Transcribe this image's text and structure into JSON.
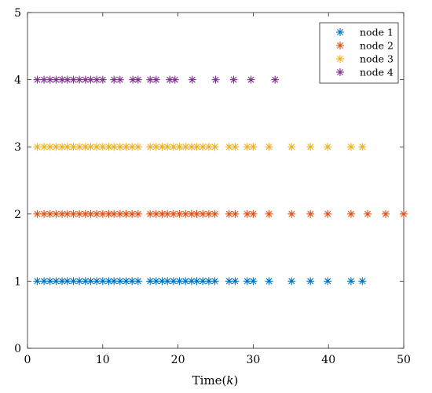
{
  "chart_data": {
    "type": "scatter",
    "marker": "asterisk",
    "xlabel": "Time(k)",
    "xlabel_parts": {
      "prefix": "Time(",
      "var": "k",
      "suffix": ")"
    },
    "ylabel": "",
    "xlim": [
      0,
      50
    ],
    "ylim": [
      0,
      5
    ],
    "xticks": [
      0,
      10,
      20,
      30,
      40,
      50
    ],
    "yticks": [
      0,
      1,
      2,
      3,
      4,
      5
    ],
    "grid": false,
    "legend_position": "top-right",
    "series": [
      {
        "name": "node 1",
        "color": "#0072BD",
        "y": 1,
        "x": [
          1.3,
          2.2,
          3.0,
          3.8,
          4.6,
          5.3,
          6.1,
          6.9,
          7.7,
          8.4,
          9.2,
          10.0,
          10.8,
          11.5,
          12.3,
          13.1,
          13.9,
          14.7,
          16.3,
          17.1,
          17.9,
          18.6,
          19.4,
          20.2,
          21.0,
          21.8,
          22.5,
          23.3,
          24.1,
          24.9,
          26.8,
          27.6,
          29.2,
          30.0,
          32.1,
          35.1,
          37.6,
          39.9,
          43.0,
          44.5
        ]
      },
      {
        "name": "node 2",
        "color": "#D95319",
        "y": 2,
        "x": [
          1.3,
          2.2,
          3.0,
          3.8,
          4.6,
          5.3,
          6.1,
          6.9,
          7.7,
          8.4,
          9.2,
          10.0,
          10.8,
          11.5,
          12.3,
          13.1,
          13.9,
          14.7,
          16.3,
          17.1,
          17.9,
          18.6,
          19.4,
          20.2,
          21.0,
          21.8,
          22.5,
          23.3,
          24.1,
          24.9,
          26.8,
          27.6,
          29.2,
          30.0,
          32.1,
          35.1,
          37.6,
          39.9,
          43.0,
          45.2,
          47.6,
          50.0
        ]
      },
      {
        "name": "node 3",
        "color": "#EDB120",
        "y": 3,
        "x": [
          1.3,
          2.2,
          3.0,
          3.8,
          4.6,
          5.3,
          6.1,
          6.9,
          7.7,
          8.4,
          9.2,
          10.0,
          10.8,
          11.5,
          12.3,
          13.1,
          13.9,
          14.7,
          16.3,
          17.1,
          17.9,
          18.6,
          19.4,
          20.2,
          21.0,
          21.8,
          22.5,
          23.3,
          24.1,
          24.9,
          26.8,
          27.6,
          29.2,
          30.0,
          32.1,
          35.1,
          37.6,
          39.9,
          43.0,
          44.5
        ]
      },
      {
        "name": "node 4",
        "color": "#7E2F8E",
        "y": 4,
        "x": [
          1.3,
          2.2,
          3.0,
          3.8,
          4.6,
          5.3,
          6.1,
          6.9,
          7.7,
          8.4,
          9.2,
          10.0,
          11.5,
          12.3,
          14.0,
          14.7,
          16.3,
          17.1,
          18.9,
          19.6,
          21.9,
          25.0,
          27.4,
          29.7,
          32.9
        ]
      }
    ]
  }
}
